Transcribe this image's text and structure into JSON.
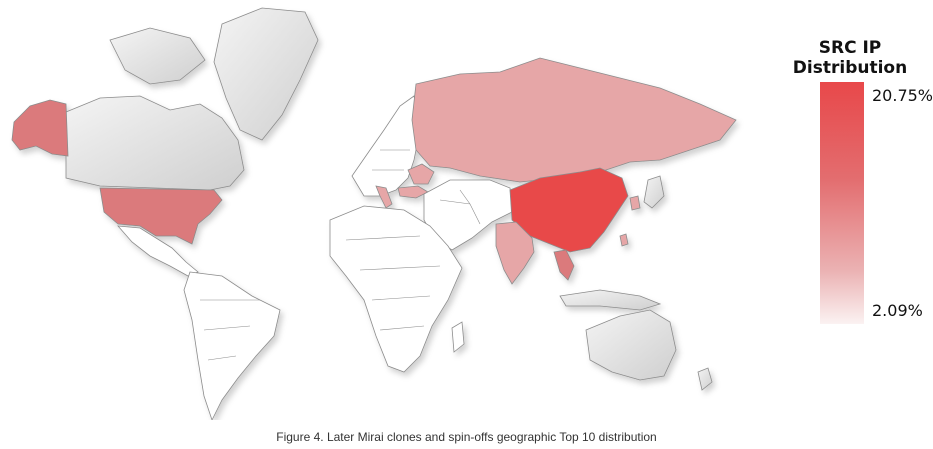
{
  "caption": "Figure 4. Later Mirai clones and spin-offs geographic Top 10 distribution",
  "legend": {
    "title": "SRC IP Distribution",
    "max_label": "20.75%",
    "min_label": "2.09%",
    "color_high": "#e8484a",
    "color_low": "#fbf2f2"
  },
  "colors": {
    "land_grey": "#dcdcdc",
    "land_white": "#ffffff",
    "border": "#8c8c8c",
    "strong": "#e8484a",
    "medium": "#db7a7b",
    "light": "#e6a6a7"
  },
  "highlighted_regions": [
    {
      "name": "China",
      "shade": "strong"
    },
    {
      "name": "United States",
      "shade": "medium"
    },
    {
      "name": "Alaska",
      "shade": "medium"
    },
    {
      "name": "Russia",
      "shade": "light"
    },
    {
      "name": "India",
      "shade": "light"
    },
    {
      "name": "Vietnam",
      "shade": "medium"
    },
    {
      "name": "Turkey",
      "shade": "light"
    },
    {
      "name": "Italy",
      "shade": "light"
    },
    {
      "name": "Ukraine",
      "shade": "light"
    },
    {
      "name": "South Korea",
      "shade": "light"
    },
    {
      "name": "Taiwan",
      "shade": "light"
    }
  ]
}
